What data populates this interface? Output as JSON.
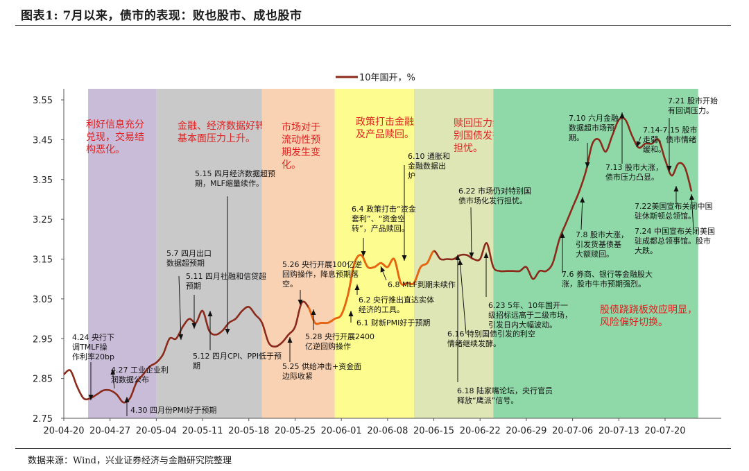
{
  "figure_title": "图表1: 7月以来，债市的表现：败也股市、成也股市",
  "source": "数据来源：Wind，兴业证券经济与金融研究院整理",
  "chart_data": {
    "type": "line",
    "title": "",
    "legend": "10年国开，%",
    "legend_position": "top-center",
    "grid": false,
    "ylim": [
      2.75,
      3.55
    ],
    "yticks": [
      "2.75",
      "2.85",
      "2.95",
      "3.05",
      "3.15",
      "3.25",
      "3.35",
      "3.45",
      "3.55"
    ],
    "xlim": [
      "2020-04-20",
      "2020-07-27"
    ],
    "xticks": [
      {
        "date": "2020-04-20",
        "label": "20-04-20"
      },
      {
        "date": "2020-04-27",
        "label": "20-04-27"
      },
      {
        "date": "2020-05-04",
        "label": "20-05-04"
      },
      {
        "date": "2020-05-11",
        "label": "20-05-11"
      },
      {
        "date": "2020-05-18",
        "label": "20-05-18"
      },
      {
        "date": "2020-05-25",
        "label": "20-05-25"
      },
      {
        "date": "2020-06-01",
        "label": "20-06-01"
      },
      {
        "date": "2020-06-08",
        "label": "20-06-08"
      },
      {
        "date": "2020-06-15",
        "label": "20-06-15"
      },
      {
        "date": "2020-06-22",
        "label": "20-06-22"
      },
      {
        "date": "2020-06-29",
        "label": "20-06-29"
      },
      {
        "date": "2020-07-06",
        "label": "20-07-06"
      },
      {
        "date": "2020-07-13",
        "label": "20-07-13"
      },
      {
        "date": "2020-07-20",
        "label": "20-07-20"
      }
    ],
    "series": [
      {
        "name": "10年国开，%",
        "color": "#8b2a1a",
        "highlight_color": "#e8650e",
        "highlight_range": [
          "2020-05-27",
          "2020-06-15"
        ],
        "x": [
          "2020-04-20",
          "2020-04-21",
          "2020-04-22",
          "2020-04-23",
          "2020-04-24",
          "2020-04-25",
          "2020-04-26",
          "2020-04-27",
          "2020-04-28",
          "2020-04-29",
          "2020-04-30",
          "2020-05-01",
          "2020-05-02",
          "2020-05-03",
          "2020-05-04",
          "2020-05-05",
          "2020-05-06",
          "2020-05-07",
          "2020-05-08",
          "2020-05-09",
          "2020-05-10",
          "2020-05-11",
          "2020-05-12",
          "2020-05-13",
          "2020-05-14",
          "2020-05-15",
          "2020-05-16",
          "2020-05-17",
          "2020-05-18",
          "2020-05-19",
          "2020-05-20",
          "2020-05-21",
          "2020-05-22",
          "2020-05-23",
          "2020-05-24",
          "2020-05-25",
          "2020-05-26",
          "2020-05-27",
          "2020-05-28",
          "2020-05-29",
          "2020-05-30",
          "2020-05-31",
          "2020-06-01",
          "2020-06-02",
          "2020-06-03",
          "2020-06-04",
          "2020-06-05",
          "2020-06-06",
          "2020-06-07",
          "2020-06-08",
          "2020-06-09",
          "2020-06-10",
          "2020-06-11",
          "2020-06-12",
          "2020-06-13",
          "2020-06-14",
          "2020-06-15",
          "2020-06-16",
          "2020-06-17",
          "2020-06-18",
          "2020-06-19",
          "2020-06-20",
          "2020-06-21",
          "2020-06-22",
          "2020-06-23",
          "2020-06-24",
          "2020-06-25",
          "2020-06-26",
          "2020-06-27",
          "2020-06-28",
          "2020-06-29",
          "2020-06-30",
          "2020-07-01",
          "2020-07-02",
          "2020-07-03",
          "2020-07-04",
          "2020-07-05",
          "2020-07-06",
          "2020-07-07",
          "2020-07-08",
          "2020-07-09",
          "2020-07-10",
          "2020-07-11",
          "2020-07-12",
          "2020-07-13",
          "2020-07-14",
          "2020-07-15",
          "2020-07-16",
          "2020-07-17",
          "2020-07-18",
          "2020-07-19",
          "2020-07-20",
          "2020-07-21",
          "2020-07-22",
          "2020-07-23",
          "2020-07-24"
        ],
        "values": [
          2.86,
          2.87,
          2.83,
          2.8,
          2.8,
          2.81,
          2.82,
          2.82,
          2.81,
          2.79,
          2.8,
          2.84,
          2.86,
          2.88,
          2.89,
          2.91,
          2.95,
          2.95,
          2.98,
          3.0,
          2.99,
          3.02,
          2.97,
          2.96,
          2.97,
          2.99,
          3.0,
          3.02,
          3.03,
          3.01,
          2.99,
          2.94,
          2.93,
          2.94,
          2.96,
          2.98,
          3.04,
          3.03,
          2.99,
          2.99,
          2.99,
          3.0,
          3.01,
          3.06,
          3.14,
          3.16,
          3.13,
          3.13,
          3.14,
          3.13,
          3.15,
          3.09,
          3.09,
          3.09,
          3.13,
          3.14,
          3.17,
          3.15,
          3.15,
          3.15,
          3.16,
          3.16,
          3.15,
          3.15,
          3.19,
          3.13,
          3.12,
          3.12,
          3.12,
          3.12,
          3.13,
          3.1,
          3.12,
          3.12,
          3.14,
          3.2,
          3.24,
          3.28,
          3.32,
          3.37,
          3.44,
          3.45,
          3.42,
          3.46,
          3.5,
          3.5,
          3.46,
          3.43,
          3.44,
          3.44,
          3.45,
          3.4,
          3.36,
          3.39,
          3.38,
          3.32
        ]
      }
    ],
    "regions": [
      {
        "start": "2020-04-22",
        "end": "2020-05-04",
        "color": "#c9bcd8",
        "text": [
          "利好信息充分",
          "兑现，交易结",
          "构恶化。"
        ]
      },
      {
        "start": "2020-05-04",
        "end": "2020-05-20",
        "color": "#c9c9c9",
        "text": [
          "金融、经济数据好转，",
          "基本面压力上升。"
        ]
      },
      {
        "start": "2020-05-20",
        "end": "2020-05-31",
        "color": "#f9d2b4",
        "text": [
          "市场对于",
          "流动性预",
          "期发生变",
          "化。"
        ]
      },
      {
        "start": "2020-05-31",
        "end": "2020-06-12",
        "color": "#fdfc8f",
        "text": [
          "政策打击金融套利",
          "及产品赎回。"
        ]
      },
      {
        "start": "2020-06-12",
        "end": "2020-06-24",
        "color": "#dfe6b5",
        "text": [
          "赎回压力缓和，但特",
          "别国债发行引发市场",
          "担忧。"
        ]
      },
      {
        "start": "2020-06-24",
        "end": "2020-07-25",
        "color": "#8fd9a8",
        "text": [
          "股债跷跷板效应明显，",
          "风险偏好切换。"
        ]
      }
    ],
    "annotations": [
      {
        "lines": [
          "4.24 央行下",
          "调TMLF操",
          "作利率20bp"
        ]
      },
      {
        "lines": [
          "4.27 工业企业利",
          "润数据公布"
        ]
      },
      {
        "lines": [
          "4.30 四月份PMI好于预期"
        ]
      },
      {
        "lines": [
          "5.7 四月出口",
          "数据超预期"
        ]
      },
      {
        "lines": [
          "5.11 四月社融和信贷超",
          "预期"
        ]
      },
      {
        "lines": [
          "5.12 四月CPI、PPI低于预",
          "期"
        ]
      },
      {
        "lines": [
          "5.15 四月经济数据超预",
          "期，MLF缩量续作。"
        ]
      },
      {
        "lines": [
          "5.25 供给冲击+资金面",
          "边际收紧"
        ]
      },
      {
        "lines": [
          "5.26 央行开展100亿逆",
          "回购操作，降息预期落",
          "空。"
        ]
      },
      {
        "lines": [
          "5.28 央行开展2400",
          "亿逆回购操作"
        ]
      },
      {
        "lines": [
          "6.1 财新PMI好于预期"
        ]
      },
      {
        "lines": [
          "6.2 央行推出直达实体",
          "经济的工具。"
        ]
      },
      {
        "lines": [
          "6.4 政策打击“资金",
          "套利”、“资金空",
          "转”，产品赎回。"
        ]
      },
      {
        "lines": [
          "6.8 MLF到期未续作"
        ]
      },
      {
        "lines": [
          "6.10 通胀和",
          "金融数据出",
          "炉"
        ]
      },
      {
        "lines": [
          "6.16 特别国债引发的利空",
          "情绪继续发酵。"
        ]
      },
      {
        "lines": [
          "6.18 陆家嘴论坛，央行官员",
          "释放“鹰派”信号。"
        ]
      },
      {
        "lines": [
          "6.22 市场仍对特别国",
          "债市场化发行担忧。"
        ]
      },
      {
        "lines": [
          "6.23 5年、10年国开一",
          "级招标远高于二级市场，",
          "引发日内大幅波动。"
        ]
      },
      {
        "lines": [
          "7.6 券商、银行等金融股大",
          "涨，股市牛市预期强烈。"
        ]
      },
      {
        "lines": [
          "7.8 股市大涨，",
          "引发货基债基",
          "大额赎回。"
        ]
      },
      {
        "lines": [
          "7.10 六月金融",
          "数据超市场预",
          "期。"
        ]
      },
      {
        "lines": [
          "7.13 股市大涨，",
          "债市压力凸显。"
        ]
      },
      {
        "lines": [
          "7.14-7.15 股市",
          "走弱，债市情绪",
          "缓和。"
        ]
      },
      {
        "lines": [
          "7.21 股市开始",
          "有回调压力。"
        ]
      },
      {
        "lines": [
          "7.22美国宣布关闭中国",
          "驻休斯顿总领馆。"
        ]
      },
      {
        "lines": [
          "7.24 中国宣布关闭美国",
          "驻成都总领事馆。股市",
          "大跌。"
        ]
      }
    ]
  }
}
